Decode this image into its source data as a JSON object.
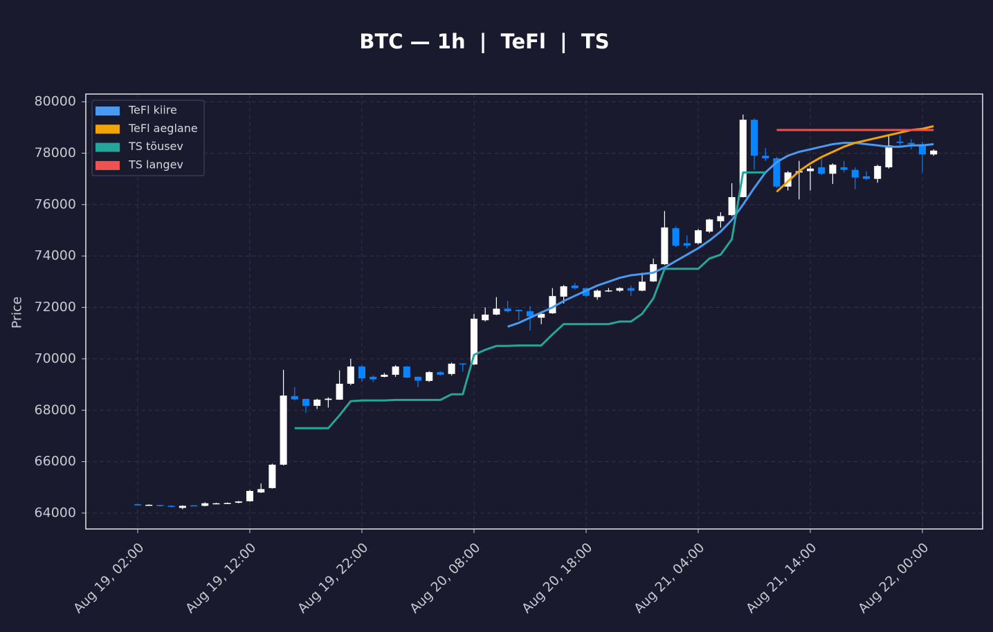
{
  "chart_data": {
    "type": "candlestick",
    "title": "BTC — 1h  |  TeFl  |  TS",
    "y_label": "Price",
    "x": [
      "Aug 19, 02:00",
      "Aug 19, 03:00",
      "Aug 19, 04:00",
      "Aug 19, 05:00",
      "Aug 19, 06:00",
      "Aug 19, 07:00",
      "Aug 19, 08:00",
      "Aug 19, 09:00",
      "Aug 19, 10:00",
      "Aug 19, 11:00",
      "Aug 19, 12:00",
      "Aug 19, 13:00",
      "Aug 19, 14:00",
      "Aug 19, 15:00",
      "Aug 19, 16:00",
      "Aug 19, 17:00",
      "Aug 19, 18:00",
      "Aug 19, 19:00",
      "Aug 19, 20:00",
      "Aug 19, 21:00",
      "Aug 19, 22:00",
      "Aug 19, 23:00",
      "Aug 20, 00:00",
      "Aug 20, 01:00",
      "Aug 20, 02:00",
      "Aug 20, 03:00",
      "Aug 20, 04:00",
      "Aug 20, 05:00",
      "Aug 20, 06:00",
      "Aug 20, 07:00",
      "Aug 20, 08:00",
      "Aug 20, 09:00",
      "Aug 20, 10:00",
      "Aug 20, 11:00",
      "Aug 20, 12:00",
      "Aug 20, 13:00",
      "Aug 20, 14:00",
      "Aug 20, 15:00",
      "Aug 20, 16:00",
      "Aug 20, 17:00",
      "Aug 20, 18:00",
      "Aug 20, 19:00",
      "Aug 20, 20:00",
      "Aug 20, 21:00",
      "Aug 20, 22:00",
      "Aug 20, 23:00",
      "Aug 21, 00:00",
      "Aug 21, 01:00",
      "Aug 21, 02:00",
      "Aug 21, 03:00",
      "Aug 21, 04:00",
      "Aug 21, 05:00",
      "Aug 21, 06:00",
      "Aug 21, 07:00",
      "Aug 21, 08:00",
      "Aug 21, 09:00",
      "Aug 21, 10:00",
      "Aug 21, 11:00",
      "Aug 21, 12:00",
      "Aug 21, 13:00",
      "Aug 21, 14:00",
      "Aug 21, 15:00",
      "Aug 21, 16:00",
      "Aug 21, 17:00",
      "Aug 21, 18:00",
      "Aug 21, 19:00",
      "Aug 21, 20:00",
      "Aug 21, 21:00",
      "Aug 21, 22:00",
      "Aug 21, 23:00",
      "Aug 22, 00:00",
      "Aug 22, 01:00"
    ],
    "open": [
      64340,
      64310,
      64310,
      64280,
      64200,
      64300,
      64280,
      64370,
      64380,
      64400,
      64460,
      64800,
      64970,
      65880,
      68550,
      68440,
      68170,
      68400,
      68410,
      69030,
      69700,
      69300,
      69300,
      69380,
      69700,
      69300,
      69140,
      69480,
      69410,
      69820,
      69780,
      71500,
      71720,
      71950,
      71900,
      71850,
      71600,
      71770,
      72420,
      72850,
      72750,
      72400,
      72650,
      72650,
      72750,
      72650,
      73010,
      73680,
      75080,
      74500,
      74500,
      74950,
      75350,
      75590,
      76290,
      79300,
      77900,
      77800,
      76700,
      77250,
      77300,
      77450,
      77200,
      77450,
      77350,
      77100,
      77000,
      77450,
      78450,
      78400,
      78350,
      77950
    ],
    "high": [
      64360,
      64340,
      64320,
      64300,
      64300,
      64310,
      64420,
      64400,
      64410,
      64470,
      64900,
      65150,
      65920,
      69570,
      68900,
      68450,
      68450,
      68500,
      69550,
      70000,
      69750,
      69350,
      69450,
      69750,
      69720,
      69310,
      69520,
      69520,
      69850,
      69830,
      71750,
      72000,
      72400,
      72250,
      71920,
      72050,
      71850,
      72750,
      72870,
      72950,
      72780,
      72700,
      72750,
      72780,
      72850,
      73350,
      73900,
      75750,
      75150,
      74800,
      75050,
      75450,
      75700,
      76830,
      79500,
      79350,
      78200,
      77850,
      77300,
      77700,
      77500,
      77850,
      77600,
      77700,
      77450,
      77300,
      77550,
      78700,
      78700,
      78550,
      78450,
      78150
    ],
    "low": [
      64290,
      64290,
      64260,
      64230,
      64150,
      64260,
      64260,
      64350,
      64360,
      64380,
      64440,
      64780,
      64950,
      65850,
      68380,
      67900,
      68050,
      68100,
      68400,
      68980,
      69100,
      69100,
      69280,
      69300,
      69250,
      68900,
      69100,
      69350,
      69350,
      69500,
      69760,
      71450,
      71700,
      71800,
      71500,
      71100,
      71350,
      71750,
      72150,
      72700,
      72400,
      72300,
      72600,
      72600,
      72450,
      72630,
      72990,
      73650,
      74350,
      74300,
      74450,
      74900,
      75100,
      75550,
      76280,
      77350,
      77700,
      76650,
      76550,
      76200,
      76550,
      77150,
      76800,
      77250,
      76600,
      76950,
      76850,
      77400,
      78300,
      78150,
      77250,
      77900
    ],
    "close": [
      64310,
      64320,
      64280,
      64250,
      64280,
      64280,
      64380,
      64380,
      64390,
      64450,
      64860,
      64930,
      65880,
      68570,
      68420,
      68170,
      68410,
      68450,
      69030,
      69700,
      69240,
      69200,
      69380,
      69700,
      69270,
      69150,
      69480,
      69380,
      69810,
      69800,
      71560,
      71720,
      71950,
      71850,
      71850,
      71650,
      71750,
      72440,
      72820,
      72750,
      72450,
      72650,
      72660,
      72750,
      72650,
      73000,
      73680,
      75110,
      74400,
      74400,
      75000,
      75420,
      75550,
      76290,
      79300,
      77900,
      77800,
      76700,
      77250,
      77300,
      77400,
      77200,
      77550,
      77350,
      77050,
      77000,
      77500,
      78300,
      78400,
      78350,
      77950,
      78100
    ],
    "up_color": "#ffffff",
    "down_color": "#0a84ff",
    "series": [
      {
        "name": "TeFl kiire",
        "color": "#4a9af0",
        "values": [
          null,
          null,
          null,
          null,
          null,
          null,
          null,
          null,
          null,
          null,
          null,
          null,
          null,
          null,
          null,
          null,
          null,
          null,
          null,
          null,
          null,
          null,
          null,
          null,
          null,
          null,
          null,
          null,
          null,
          null,
          null,
          null,
          null,
          71250,
          71400,
          71600,
          71800,
          72000,
          72250,
          72450,
          72650,
          72850,
          73000,
          73150,
          73250,
          73300,
          73350,
          73550,
          73800,
          74050,
          74300,
          74600,
          74950,
          75400,
          76000,
          76650,
          77250,
          77650,
          77900,
          78050,
          78150,
          78250,
          78350,
          78400,
          78400,
          78350,
          78300,
          78250,
          78250,
          78300,
          78300,
          78350
        ]
      },
      {
        "name": "TeFl aeglane",
        "color": "#f0a30a",
        "values": [
          null,
          null,
          null,
          null,
          null,
          null,
          null,
          null,
          null,
          null,
          null,
          null,
          null,
          null,
          null,
          null,
          null,
          null,
          null,
          null,
          null,
          null,
          null,
          null,
          null,
          null,
          null,
          null,
          null,
          null,
          null,
          null,
          null,
          null,
          null,
          null,
          null,
          null,
          null,
          null,
          null,
          null,
          null,
          null,
          null,
          null,
          null,
          null,
          null,
          null,
          null,
          null,
          null,
          null,
          null,
          null,
          null,
          76500,
          76900,
          77300,
          77600,
          77850,
          78050,
          78250,
          78400,
          78500,
          78600,
          78700,
          78800,
          78900,
          78950,
          79050
        ]
      },
      {
        "name": "TS tõusev",
        "color": "#26a69a",
        "values": [
          null,
          null,
          null,
          null,
          null,
          null,
          null,
          null,
          null,
          null,
          null,
          null,
          null,
          null,
          67300,
          67300,
          67300,
          67300,
          67800,
          68350,
          68380,
          68380,
          68380,
          68400,
          68400,
          68400,
          68400,
          68400,
          68620,
          68620,
          70150,
          70350,
          70500,
          70500,
          70520,
          70520,
          70520,
          70950,
          71350,
          71350,
          71350,
          71350,
          71350,
          71450,
          71450,
          71750,
          72350,
          73500,
          73500,
          73500,
          73500,
          73900,
          74050,
          74650,
          77250,
          77250,
          77250,
          null,
          null,
          null,
          null,
          null,
          null,
          null,
          null,
          null,
          null,
          null,
          null,
          null,
          null,
          null
        ]
      },
      {
        "name": "TS langev",
        "color": "#ef5350",
        "values": [
          null,
          null,
          null,
          null,
          null,
          null,
          null,
          null,
          null,
          null,
          null,
          null,
          null,
          null,
          null,
          null,
          null,
          null,
          null,
          null,
          null,
          null,
          null,
          null,
          null,
          null,
          null,
          null,
          null,
          null,
          null,
          null,
          null,
          null,
          null,
          null,
          null,
          null,
          null,
          null,
          null,
          null,
          null,
          null,
          null,
          null,
          null,
          null,
          null,
          null,
          null,
          null,
          null,
          null,
          null,
          null,
          null,
          78900,
          78900,
          78900,
          78900,
          78900,
          78900,
          78900,
          78900,
          78900,
          78900,
          78900,
          78900,
          78900,
          78900,
          78900
        ]
      }
    ],
    "ylim": [
      63380,
      80300
    ],
    "yticks": [
      64000,
      66000,
      68000,
      70000,
      72000,
      74000,
      76000,
      78000,
      80000
    ],
    "xticks": [
      "Aug 19, 02:00",
      "Aug 19, 12:00",
      "Aug 19, 22:00",
      "Aug 20, 08:00",
      "Aug 20, 18:00",
      "Aug 21, 04:00",
      "Aug 21, 14:00",
      "Aug 22, 00:00"
    ],
    "grid": true,
    "legend": "upper left"
  }
}
